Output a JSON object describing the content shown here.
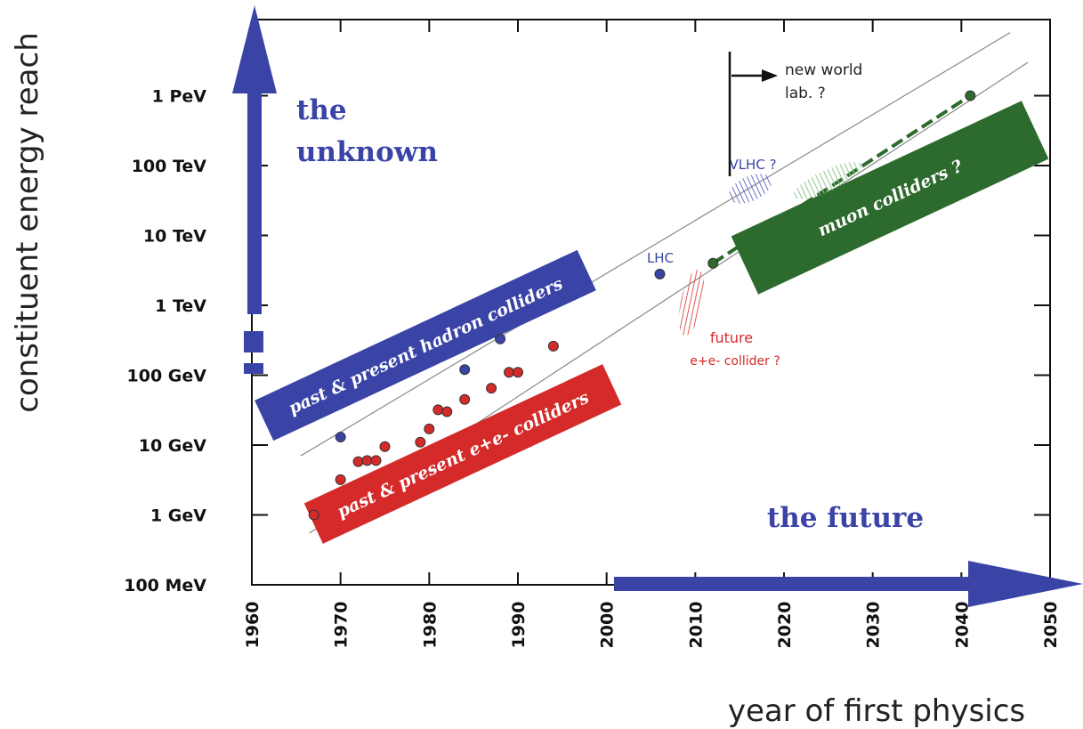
{
  "chart_data": {
    "type": "scatter",
    "xlabel": "year of first physics",
    "ylabel": "constituent energy reach",
    "x_ticks": [
      "1960",
      "1970",
      "1980",
      "1990",
      "2000",
      "2010",
      "2020",
      "2030",
      "2040",
      "2050"
    ],
    "y_ticks": [
      "100 MeV",
      "1 GeV",
      "10 GeV",
      "100 GeV",
      "1 TeV",
      "10 TeV",
      "100 TeV",
      "1 PeV"
    ],
    "xlim": [
      1960,
      2050
    ],
    "ylim_log10_GeV": [
      -1,
      6
    ],
    "y_scale": "log",
    "series": [
      {
        "name": "past & present hadron colliders",
        "color": "#3a44a6",
        "points": [
          [
            1970,
            13
          ],
          [
            1984,
            120
          ],
          [
            1988,
            330
          ],
          [
            2006,
            2800
          ]
        ]
      },
      {
        "name": "past & present e+e- colliders",
        "color": "#d42a2a",
        "points": [
          [
            1967,
            1.0
          ],
          [
            1970,
            3.2
          ],
          [
            1972,
            5.8
          ],
          [
            1973,
            6.0
          ],
          [
            1974,
            6.0
          ],
          [
            1975,
            9.5
          ],
          [
            1979,
            11
          ],
          [
            1980,
            17
          ],
          [
            1981,
            32
          ],
          [
            1982,
            30
          ],
          [
            1984,
            45
          ],
          [
            1987,
            65
          ],
          [
            1989,
            110
          ],
          [
            1990,
            110
          ],
          [
            1994,
            260
          ]
        ]
      },
      {
        "name": "muon colliders ?",
        "color": "#2d6a2d",
        "points": [
          [
            2012,
            4000
          ],
          [
            2041,
            1000000
          ]
        ]
      }
    ],
    "annotations": {
      "the_unknown": "the unknown",
      "the_future": "the future",
      "hadron_band": "past & present hadron colliders",
      "ee_band": "past & present e+e- colliders",
      "muon_band": "muon colliders ?",
      "lhc": "LHC",
      "vlhc": "VLHC ?",
      "future_ee_line1": "future",
      "future_ee_line2": "e+e- collider ?",
      "new_world_line1": "new world",
      "new_world_line2": "lab. ?"
    },
    "colors": {
      "blue": "#3a44a6",
      "red": "#d42a2a",
      "green": "#2d6a2d",
      "light_green": "#8fc98f",
      "hatch_red": "#e05a5a",
      "hatch_blue": "#6a74c6"
    }
  }
}
